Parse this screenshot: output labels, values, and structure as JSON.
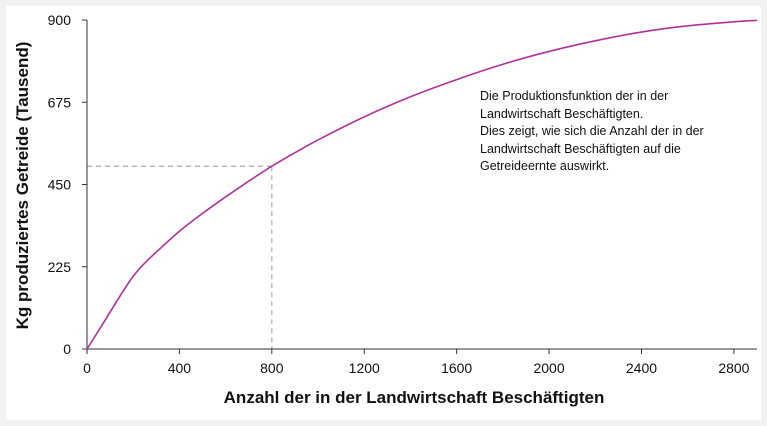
{
  "chart_data": {
    "type": "line",
    "title": "",
    "xlabel": "Anzahl der in der Landwirtschaft Beschäftigten",
    "ylabel": "Kg produziertes Getreide (Tausend)",
    "xlim": [
      0,
      2900
    ],
    "ylim": [
      0,
      900
    ],
    "x_ticks": [
      0,
      400,
      800,
      1200,
      1600,
      2000,
      2400,
      2800
    ],
    "y_ticks": [
      0,
      225,
      450,
      675,
      900
    ],
    "grid": false,
    "legend": "none",
    "series": [
      {
        "color": "#b0319a",
        "x": [
          0,
          50,
          100,
          150,
          200,
          250,
          300,
          400,
          500,
          600,
          700,
          800,
          900,
          1000,
          1200,
          1400,
          1600,
          1800,
          2000,
          2200,
          2400,
          2600,
          2800,
          2900
        ],
        "y": [
          0,
          50,
          101,
          152,
          199,
          235,
          265,
          322,
          371,
          416,
          459,
          500,
          537,
          572,
          635,
          690,
          737,
          779,
          814,
          843,
          867,
          884,
          895,
          899
        ]
      }
    ],
    "reference_point": {
      "x": 800,
      "y": 500
    },
    "annotation": [
      "Die Produktionsfunktion der in der",
      "Landwirtschaft Beschäftigten.",
      "Dies zeigt, wie sich die Anzahl der in der",
      "Landwirtschaft Beschäftigten auf die",
      "Getreideernte auswirkt."
    ]
  },
  "colors": {
    "curve": "#b0319a",
    "reference_lines": "#aaaaaa",
    "axis": "#333333"
  }
}
